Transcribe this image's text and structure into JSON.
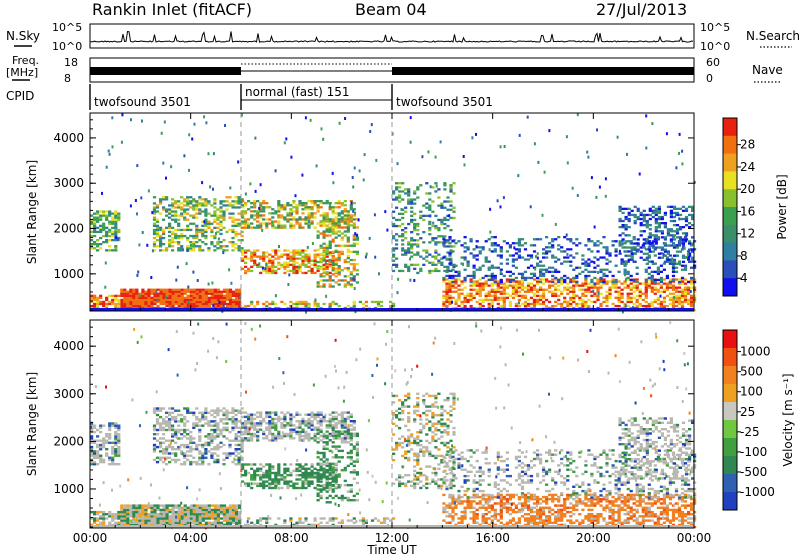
{
  "header": {
    "radar_title": "Rankin Inlet (fitACF)",
    "beam": "Beam 04",
    "date": "27/Jul/2013"
  },
  "top_panels": {
    "nsky_label": "N.Sky",
    "nsearch_label": "N.Search",
    "nsky_ticks": [
      "10^5",
      "10^0"
    ],
    "freq_label_1": "Freq.",
    "freq_label_2": "[MHz]",
    "freq_ticks": [
      "18",
      "8"
    ],
    "nave_label": "Nave",
    "nave_ticks": [
      "60",
      "0"
    ],
    "cpid_label": "CPID",
    "cpid_segments": [
      {
        "label": "twofsound 3501",
        "start_hour": 0,
        "end_hour": 6
      },
      {
        "label": "normal (fast) 151",
        "start_hour": 6,
        "end_hour": 12
      },
      {
        "label": "twofsound 3501",
        "start_hour": 12,
        "end_hour": 24
      }
    ]
  },
  "chart_data": [
    {
      "type": "heatmap",
      "name": "power",
      "xlabel": "",
      "ylabel": "Slant Range [km]",
      "x_ticks": [
        "00:00",
        "04:00",
        "08:00",
        "12:00",
        "16:00",
        "20:00",
        "00:00"
      ],
      "y_ticks": [
        "1000",
        "2000",
        "3000",
        "4000"
      ],
      "xlim_hours": [
        0,
        24
      ],
      "ylim_km": [
        180,
        4550
      ],
      "colorbar": {
        "label": "Power [dB]",
        "ticks": [
          "28",
          "24",
          "20",
          "16",
          "12",
          "8",
          "4"
        ],
        "colors": [
          "#1010ee",
          "#2a4fb8",
          "#2f7fa0",
          "#3a8f6a",
          "#3aa050",
          "#88c030",
          "#e8e020",
          "#f0a020",
          "#f07010",
          "#e82010"
        ]
      }
    },
    {
      "type": "heatmap",
      "name": "velocity",
      "xlabel": "Time UT",
      "ylabel": "Slant Range [km]",
      "x_ticks": [
        "00:00",
        "04:00",
        "08:00",
        "12:00",
        "16:00",
        "20:00",
        "00:00"
      ],
      "y_ticks": [
        "1000",
        "2000",
        "3000",
        "4000"
      ],
      "xlim_hours": [
        0,
        24
      ],
      "ylim_km": [
        180,
        4550
      ],
      "colorbar": {
        "label": "Velocity [m s⁻¹]",
        "ticks": [
          "1000",
          "500",
          "100",
          "25",
          "-25",
          "-100",
          "-500",
          "-1000"
        ],
        "colors": [
          "#2040c0",
          "#3060b0",
          "#308850",
          "#40a040",
          "#70c840",
          "#c8c8c0",
          "#f0a020",
          "#f08020",
          "#f05010",
          "#e81010"
        ]
      }
    }
  ],
  "colors": {
    "ground_scatter": "#b8b8b0",
    "axis": "#000000"
  }
}
